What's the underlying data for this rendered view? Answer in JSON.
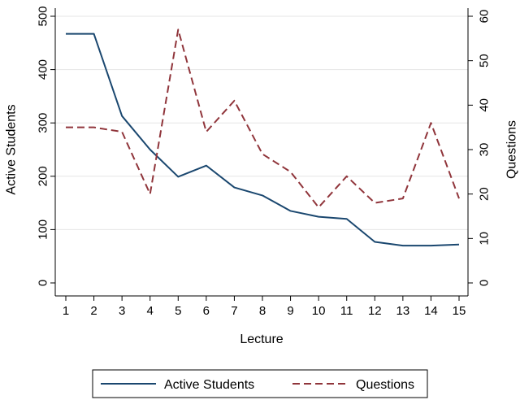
{
  "chart_data": {
    "type": "line",
    "xlabel": "Lecture",
    "ylabel_left": "Active Students",
    "ylabel_right": "Questions",
    "x": [
      1,
      2,
      3,
      4,
      5,
      6,
      7,
      8,
      9,
      10,
      11,
      12,
      13,
      14,
      15
    ],
    "xlim": [
      1,
      15
    ],
    "ylim_left": [
      0,
      500
    ],
    "ylim_right": [
      0,
      60
    ],
    "yticks_left": [
      0,
      100,
      200,
      300,
      400,
      500
    ],
    "yticks_right": [
      0,
      10,
      20,
      30,
      40,
      50,
      60
    ],
    "grid": true,
    "legend_position": "bottom",
    "series": [
      {
        "name": "Active Students",
        "axis": "left",
        "style": "solid",
        "color": "#1a476f",
        "values": [
          467,
          467,
          313,
          250,
          199,
          220,
          179,
          164,
          135,
          124,
          120,
          77,
          70,
          70,
          72
        ]
      },
      {
        "name": "Questions",
        "axis": "right",
        "style": "dashed",
        "color": "#90353b",
        "values": [
          35,
          35,
          34,
          20,
          57,
          34,
          41,
          29,
          25,
          17,
          24,
          18,
          19,
          36,
          19
        ]
      }
    ]
  }
}
